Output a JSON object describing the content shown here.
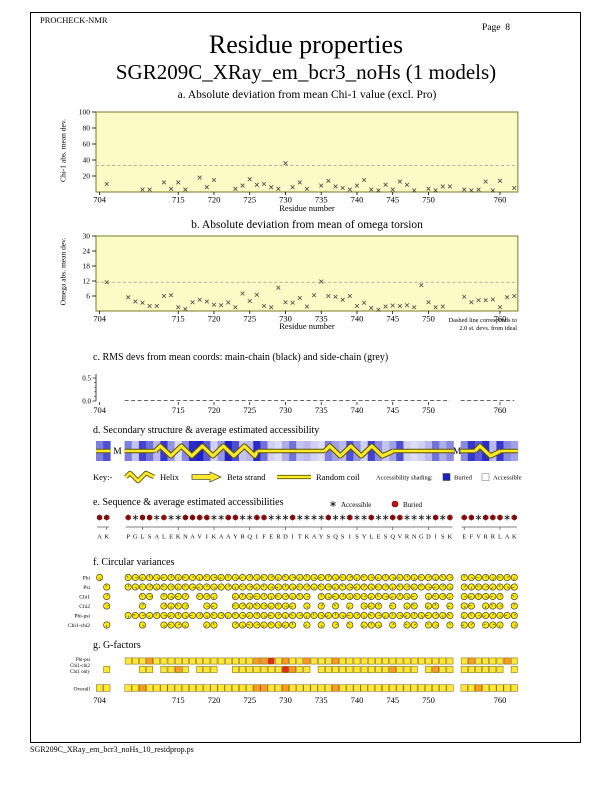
{
  "header": {
    "app": "PROCHECK-NMR",
    "page_label": "Page  8"
  },
  "title": {
    "main": "Residue properties",
    "sub": "SGR209C_XRay_em_bcr3_noHs (1 models)"
  },
  "footer": {
    "filename": "SGR209C_XRay_em_bcr3_noHs_10_residprop.ps"
  },
  "colors": {
    "plot_bg": "#FBFBC6",
    "plot_frame": "#7B7B2A",
    "dashed": "#999999",
    "point": "#444444",
    "buried_blue": "#2020BE",
    "ribbon_yellow": "#FFE929",
    "ribbon_edge": "#555500",
    "dial_yellow": "#FFEB00",
    "g_yellow": "#FFE833",
    "g_orange": "#FF9A1E",
    "g_red": "#E82810",
    "buried_red": "#CC1111",
    "accessible_black": "#111111"
  },
  "axis": {
    "x_label": "Residue number",
    "x_ticks": [
      704,
      715,
      720,
      725,
      730,
      735,
      740,
      745,
      750,
      760
    ],
    "x_min": 704,
    "x_max": 763
  },
  "sequence": {
    "chain_break_label": "M",
    "breaks": [
      707,
      754.5
    ],
    "blocks": [
      {
        "start": 704,
        "seq": "AK"
      },
      {
        "start": 708,
        "seq": "PGLSALEKNAVIKAAYRQIFERDITKAYSQSISYLESQVRNGDISK"
      },
      {
        "start": 755,
        "seq": "EFVRRLAK"
      }
    ],
    "symbols": "BBBABBABAABBBBAABBAABBAAABAAAABAABAABAABBAAAABABBBABBBAB",
    "access_shades": [
      0.55,
      0.75,
      0.55,
      0.25,
      0.8,
      0.6,
      0.3,
      0.85,
      0.45,
      0.15,
      0.5,
      0.9,
      0.95,
      0.7,
      0.2,
      0.45,
      0.95,
      0.75,
      0.25,
      0.3,
      0.9,
      0.6,
      0.2,
      0.15,
      0.35,
      0.6,
      0.25,
      0.3,
      0.2,
      0.15,
      0.55,
      0.4,
      0.3,
      0.75,
      0.45,
      0.2,
      0.8,
      0.5,
      0.25,
      0.4,
      0.75,
      0.2,
      0.15,
      0.2,
      0.3,
      0.6,
      0.35,
      0.5,
      0.5,
      0.85,
      0.7,
      0.9,
      0.3,
      0.85,
      0.5,
      0.4
    ]
  },
  "chart_data": [
    {
      "id": "a",
      "type": "scatter",
      "title": "a. Absolute deviation from mean Chi-1 value (excl. Pro)",
      "ylabel": "Chi-1 abs. mean dev.",
      "xlabel": "Residue number",
      "ylim": [
        0,
        100
      ],
      "yticks": [
        20,
        40,
        60,
        80,
        100
      ],
      "dashed_line_y": 33,
      "points": [
        [
          705,
          10
        ],
        [
          710,
          3
        ],
        [
          711,
          3
        ],
        [
          713,
          12
        ],
        [
          714,
          4
        ],
        [
          715,
          12
        ],
        [
          716,
          3
        ],
        [
          718,
          18
        ],
        [
          719,
          6
        ],
        [
          720,
          15
        ],
        [
          723,
          4
        ],
        [
          724,
          8
        ],
        [
          725,
          16
        ],
        [
          726,
          9
        ],
        [
          727,
          10
        ],
        [
          728,
          6
        ],
        [
          729,
          4
        ],
        [
          730,
          36
        ],
        [
          731,
          6
        ],
        [
          732,
          12
        ],
        [
          733,
          4
        ],
        [
          735,
          8
        ],
        [
          736,
          14
        ],
        [
          737,
          7
        ],
        [
          738,
          5
        ],
        [
          739,
          3
        ],
        [
          740,
          8
        ],
        [
          741,
          15
        ],
        [
          742,
          3
        ],
        [
          743,
          2
        ],
        [
          744,
          9
        ],
        [
          745,
          3
        ],
        [
          746,
          13
        ],
        [
          747,
          9
        ],
        [
          748,
          2
        ],
        [
          750,
          4
        ],
        [
          751,
          2
        ],
        [
          752,
          7
        ],
        [
          753,
          7
        ],
        [
          755,
          3
        ],
        [
          756,
          2
        ],
        [
          757,
          3
        ],
        [
          758,
          13
        ],
        [
          759,
          2
        ],
        [
          760,
          14
        ],
        [
          762,
          5
        ]
      ]
    },
    {
      "id": "b",
      "type": "scatter",
      "title": "b. Absolute deviation from mean of omega torsion",
      "ylabel": "Omega abs. mean dev.",
      "xlabel": "Residue number",
      "ylim": [
        0,
        30
      ],
      "yticks": [
        6,
        12,
        18,
        24,
        30
      ],
      "dashed_line_y": 11.5,
      "note": [
        "Dashed line corresponds to",
        "2.0 st. devs. from ideal"
      ],
      "points": [
        [
          705,
          11.5
        ],
        [
          708,
          5.5
        ],
        [
          709,
          3.8
        ],
        [
          710,
          3.3
        ],
        [
          711,
          2
        ],
        [
          712,
          2
        ],
        [
          713,
          6
        ],
        [
          714,
          6.3
        ],
        [
          715,
          1.5
        ],
        [
          716,
          0.8
        ],
        [
          717,
          3.5
        ],
        [
          718,
          4.5
        ],
        [
          719,
          3.8
        ],
        [
          720,
          2.5
        ],
        [
          721,
          2.3
        ],
        [
          722,
          3.4
        ],
        [
          723,
          1.5
        ],
        [
          724,
          7
        ],
        [
          725,
          4
        ],
        [
          726,
          6.5
        ],
        [
          727,
          2
        ],
        [
          728,
          1.5
        ],
        [
          729,
          9.3
        ],
        [
          730,
          3.5
        ],
        [
          731,
          3.3
        ],
        [
          732,
          5.2
        ],
        [
          733,
          1.8
        ],
        [
          734,
          6.3
        ],
        [
          735,
          11.8
        ],
        [
          736,
          6
        ],
        [
          737,
          5.7
        ],
        [
          738,
          4.5
        ],
        [
          739,
          6
        ],
        [
          740,
          2
        ],
        [
          741,
          3.3
        ],
        [
          742,
          1.2
        ],
        [
          743,
          0.5
        ],
        [
          744,
          1.8
        ],
        [
          745,
          2.2
        ],
        [
          746,
          2
        ],
        [
          747,
          2.3
        ],
        [
          748,
          1.5
        ],
        [
          749,
          10.3
        ],
        [
          750,
          3.5
        ],
        [
          751,
          1.5
        ],
        [
          752,
          1.8
        ],
        [
          755,
          5.7
        ],
        [
          756,
          3.5
        ],
        [
          757,
          4.3
        ],
        [
          758,
          4.3
        ],
        [
          759,
          4.6
        ],
        [
          760,
          1.5
        ],
        [
          761,
          5.5
        ],
        [
          762,
          6
        ]
      ]
    },
    {
      "id": "c",
      "type": "line",
      "title": "c. RMS devs from mean coords: main-chain (black) and side-chain (grey)",
      "yticks": [
        0.5,
        0.0
      ],
      "value": 0.0,
      "segments": [
        [
          708,
          753.5
        ],
        [
          755,
          762.5
        ]
      ]
    },
    {
      "id": "d",
      "type": "strip",
      "title": "d. Secondary structure & average estimated accessibility",
      "key": {
        "prefix": "Key:-",
        "helix": "Helix",
        "beta": "Beta strand",
        "coil": "Random coil",
        "shading": "Accessibility shading:",
        "buried": "Buried",
        "accessible": "Accessible"
      },
      "structure": [
        {
          "type": "coil",
          "from": 704,
          "to": 706
        },
        {
          "type": "coil",
          "from": 708,
          "to": 712.3
        },
        {
          "type": "helix",
          "from": 712.3,
          "to": 726.6
        },
        {
          "type": "coil",
          "from": 726.6,
          "to": 736
        },
        {
          "type": "helix",
          "from": 736,
          "to": 745.6
        },
        {
          "type": "coil",
          "from": 745.6,
          "to": 754
        },
        {
          "type": "coil",
          "from": 755,
          "to": 757
        },
        {
          "type": "helix",
          "from": 757,
          "to": 760.6
        },
        {
          "type": "coil",
          "from": 760.6,
          "to": 763
        }
      ]
    },
    {
      "id": "e",
      "type": "sequence",
      "title": "e. Sequence & average estimated accessibilities",
      "legend": {
        "accessible": "Accessible",
        "buried": "Buried"
      }
    },
    {
      "id": "f",
      "type": "dials",
      "title": "f. Circular variances",
      "rows": [
        {
          "label": "Phi",
          "singles": [
            704
          ],
          "ranges": [
            [
              708,
              753
            ],
            [
              755,
              762
            ]
          ]
        },
        {
          "label": "Psi",
          "singles": [
            705
          ],
          "ranges": [
            [
              708,
              753
            ],
            [
              755,
              762
            ]
          ]
        },
        {
          "label": "Chi1",
          "singles": [
            705
          ],
          "ranges": [
            [
              710,
              711
            ],
            [
              713,
              716
            ],
            [
              718,
              720
            ],
            [
              723,
              733
            ],
            [
              735,
              748
            ],
            [
              750,
              753
            ],
            [
              755,
              760
            ],
            [
              762,
              762
            ]
          ]
        },
        {
          "label": "Chi2",
          "singles": [
            705,
            710,
            733,
            735,
            737,
            739,
            745,
            753,
            762
          ],
          "ranges": [
            [
              713,
              716
            ],
            [
              719,
              720
            ],
            [
              723,
              731
            ],
            [
              741,
              743
            ],
            [
              747,
              748
            ],
            [
              750,
              751
            ],
            [
              755,
              756
            ],
            [
              758,
              760
            ]
          ]
        },
        {
          "label": "Phi-psi",
          "singles": [],
          "ranges": [
            [
              708,
              753
            ],
            [
              755,
              762
            ]
          ]
        },
        {
          "label": "Chi1-chi2",
          "singles": [
            705,
            710,
            733,
            735,
            737,
            739,
            745,
            753,
            762
          ],
          "ranges": [
            [
              713,
              716
            ],
            [
              719,
              720
            ],
            [
              723,
              731
            ],
            [
              741,
              743
            ],
            [
              747,
              748
            ],
            [
              750,
              751
            ],
            [
              755,
              756
            ],
            [
              758,
              760
            ]
          ]
        }
      ]
    },
    {
      "id": "g",
      "type": "gfactors",
      "title": "g. G-factors",
      "row_labels": [
        "Phi-psi",
        "Chi1-chi2",
        "Chi1 only",
        "Overall"
      ],
      "rows": {
        "phi_psi": {
          "singles": [],
          "ranges": [
            [
              708,
              753
            ],
            [
              755,
              762
            ]
          ],
          "overrides": {
            "711": "orange",
            "726": "orange",
            "727": "orange",
            "728": "red",
            "730": "orange",
            "733": "orange",
            "737": "orange",
            "756": "orange",
            "761": "orange"
          }
        },
        "chi": {
          "singles": [
            705
          ],
          "ranges": [
            [
              710,
              711
            ],
            [
              713,
              716
            ],
            [
              718,
              720
            ],
            [
              723,
              733
            ],
            [
              735,
              748
            ],
            [
              750,
              753
            ],
            [
              755,
              760
            ],
            [
              762,
              762
            ]
          ],
          "overrides": {
            "715": "orange",
            "730": "red",
            "731": "orange",
            "745": "orange",
            "751": "orange"
          }
        },
        "overall": {
          "singles": [
            704,
            705
          ],
          "ranges": [
            [
              708,
              753
            ],
            [
              755,
              762
            ]
          ],
          "overrides": {
            "710": "orange",
            "726": "orange",
            "727": "orange",
            "730": "orange",
            "737": "orange",
            "757": "orange"
          }
        }
      }
    }
  ]
}
